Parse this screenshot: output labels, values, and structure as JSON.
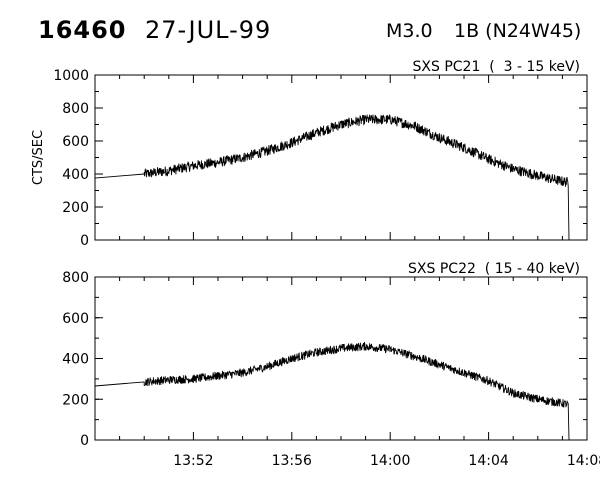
{
  "header": {
    "event_number": "16460",
    "date": "27-JUL-99",
    "flare_class": "M3.0",
    "optical": "1B (N24W45)"
  },
  "chart_data": [
    {
      "type": "line",
      "title": "SXS PC21  (  3 - 15 keV)",
      "ylabel": "CTS/SEC",
      "xlabel": "",
      "xlim": [
        "13:48",
        "14:08"
      ],
      "ylim": [
        0,
        1000
      ],
      "yticks": [
        0,
        200,
        400,
        600,
        800,
        1000
      ],
      "xticks": [
        "13:52",
        "13:56",
        "14:00",
        "14:04",
        "14:08"
      ],
      "grid": false,
      "data_gap": [
        "13:48",
        "13:50"
      ],
      "data_end": "14:07:15",
      "noise_amplitude": 30,
      "series": [
        {
          "x": [
            "13:48:00",
            "13:50:00",
            "13:50:30",
            "13:51:00",
            "13:52:00",
            "13:53:00",
            "13:54:00",
            "13:55:00",
            "13:56:00",
            "13:57:00",
            "13:58:00",
            "13:59:00",
            "14:00:00",
            "14:01:00",
            "14:02:00",
            "14:03:00",
            "14:04:00",
            "14:05:00",
            "14:06:00",
            "14:07:00",
            "14:07:15",
            "14:07:16"
          ],
          "values": [
            375,
            400,
            410,
            420,
            450,
            470,
            500,
            540,
            590,
            650,
            700,
            730,
            730,
            690,
            620,
            560,
            490,
            430,
            390,
            355,
            350,
            0
          ]
        }
      ]
    },
    {
      "type": "line",
      "title": "SXS PC22  ( 15 - 40 keV)",
      "ylabel": "",
      "xlabel": "",
      "xlim": [
        "13:48",
        "14:08"
      ],
      "ylim": [
        0,
        800
      ],
      "yticks": [
        0,
        200,
        400,
        600,
        800
      ],
      "xticks": [
        "13:52",
        "13:56",
        "14:00",
        "14:04",
        "14:08"
      ],
      "grid": false,
      "data_gap": [
        "13:48",
        "13:50"
      ],
      "data_end": "14:07:15",
      "noise_amplitude": 20,
      "series": [
        {
          "x": [
            "13:48:00",
            "13:50:00",
            "13:51:00",
            "13:52:00",
            "13:53:00",
            "13:54:00",
            "13:55:00",
            "13:56:00",
            "13:57:00",
            "13:58:00",
            "13:59:00",
            "14:00:00",
            "14:01:00",
            "14:02:00",
            "14:03:00",
            "14:04:00",
            "14:05:00",
            "14:06:00",
            "14:07:00",
            "14:07:15",
            "14:07:16"
          ],
          "values": [
            265,
            285,
            295,
            300,
            315,
            330,
            360,
            400,
            430,
            450,
            460,
            445,
            410,
            370,
            330,
            290,
            230,
            200,
            180,
            175,
            0
          ]
        }
      ]
    }
  ]
}
